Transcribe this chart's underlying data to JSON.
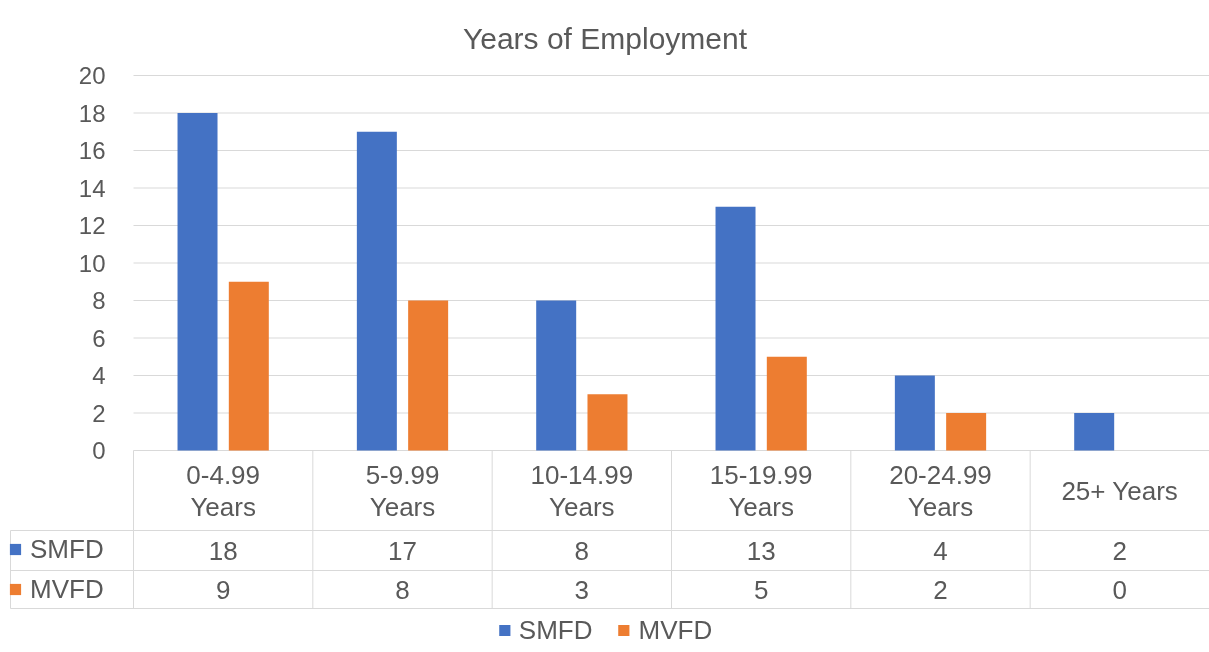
{
  "chart_data": {
    "type": "bar",
    "title": "Years of Employment",
    "categories": [
      "0-4.99 Years",
      "5-9.99 Years",
      "10-14.99 Years",
      "15-19.99 Years",
      "20-24.99 Years",
      "25+ Years"
    ],
    "series": [
      {
        "name": "SMFD",
        "color": "#4472c4",
        "values": [
          18,
          17,
          8,
          13,
          4,
          2
        ]
      },
      {
        "name": "MVFD",
        "color": "#ed7d31",
        "values": [
          9,
          8,
          3,
          5,
          2,
          0
        ]
      }
    ],
    "ylim": [
      0,
      20
    ],
    "yticks": [
      0,
      2,
      4,
      6,
      8,
      10,
      12,
      14,
      16,
      18,
      20
    ],
    "grid": "y",
    "legend": "bottom",
    "data_labels": true
  }
}
